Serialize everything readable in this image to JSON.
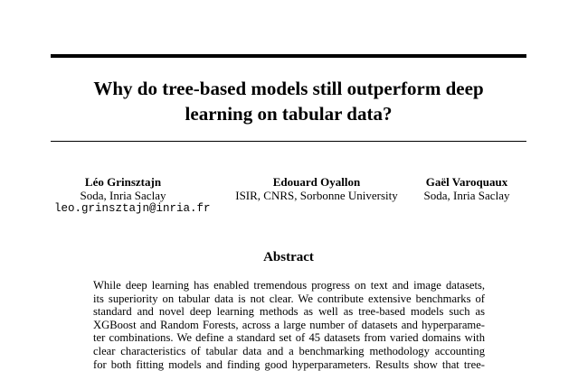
{
  "paper": {
    "title_lines": [
      "Why do tree-based models still outperform deep",
      "learning on tabular data?"
    ],
    "authors": [
      {
        "name": "Léo Grinsztajn",
        "affiliation": "Soda, Inria Saclay",
        "email": "leo.grinsztajn@inria.fr"
      },
      {
        "name": "Edouard Oyallon",
        "affiliation": "ISIR, CNRS, Sorbonne University"
      },
      {
        "name": "Gaël Varoquaux",
        "affiliation": "Soda, Inria Saclay"
      }
    ],
    "abstract_heading": "Abstract",
    "abstract_lines": [
      "While deep learning has enabled tremendous progress on text and image datasets,",
      "its superiority on tabular data is not clear. We contribute extensive benchmarks of",
      "standard and novel deep learning methods as well as tree-based models such as",
      "XGBoost and Random Forests, across a large number of datasets and hyperparame-",
      "ter combinations. We define a standard set of 45 datasets from varied domains with",
      "clear characteristics of tabular data and a benchmarking methodology accounting",
      "for both fitting models and finding good hyperparameters. Results show that tree-"
    ]
  }
}
